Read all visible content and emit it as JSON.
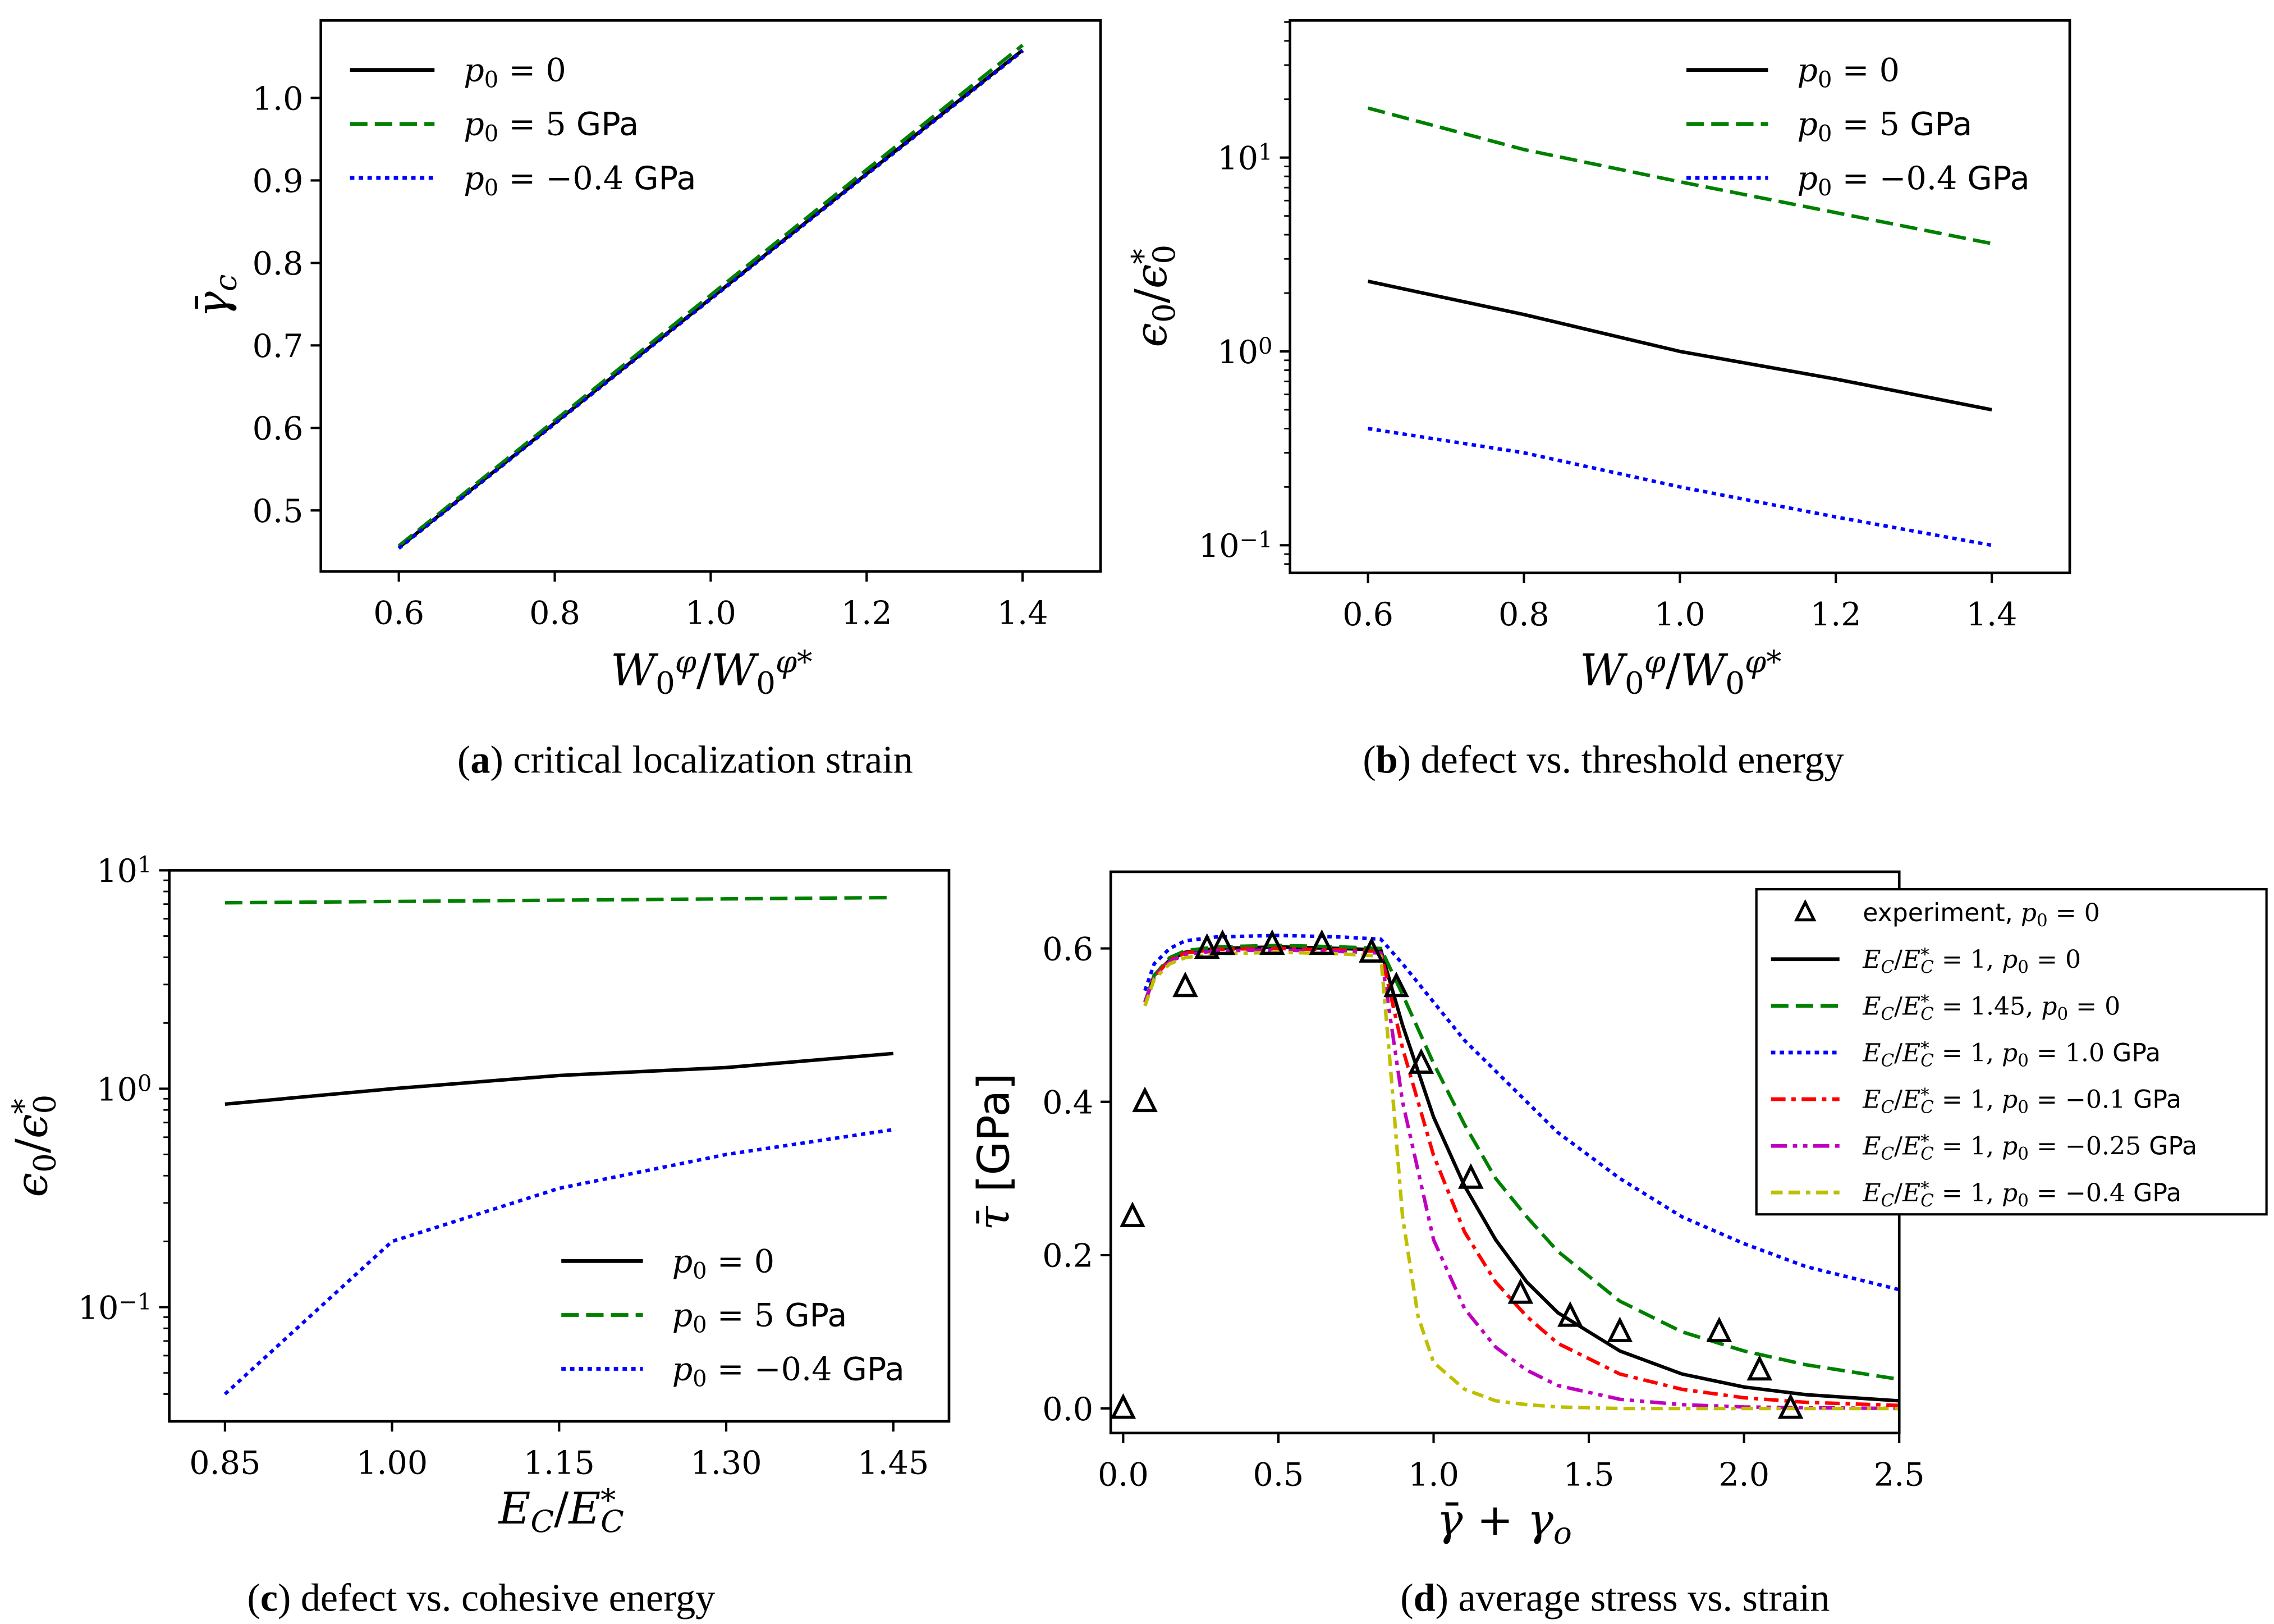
{
  "colors": {
    "black": "#000000",
    "green": "#008000",
    "blue": "#0000ff",
    "red": "#ff0000",
    "magenta": "#bf00bf",
    "yellow": "#bfbf00"
  },
  "chart_data": [
    {
      "type": "line",
      "id": "a",
      "caption": {
        "letter": "a",
        "text": "critical localization strain"
      },
      "xlabel": "W_{0}^{φ}/W_{0}^{φ*}",
      "ylabel": "γ̄_{c}",
      "xscale": "linear",
      "yscale": "linear",
      "xlim": [
        0.5,
        1.5
      ],
      "ylim": [
        0.426,
        1.094
      ],
      "xticks": [
        0.6,
        0.8,
        1.0,
        1.2,
        1.4
      ],
      "xticklabels": [
        "0.6",
        "0.8",
        "1.0",
        "1.2",
        "1.4"
      ],
      "yticks": [
        0.5,
        0.6,
        0.7,
        0.8,
        0.9,
        1.0
      ],
      "yticklabels": [
        "0.5",
        "0.6",
        "0.7",
        "0.8",
        "0.9",
        "1.0"
      ],
      "legend_position": "top-left",
      "series": [
        {
          "name": "p_{0} = 0",
          "color": "black",
          "style": "solid",
          "x": [
            0.6,
            0.8,
            1.0,
            1.2,
            1.4
          ],
          "y": [
            0.455,
            0.606,
            0.757,
            0.908,
            1.058
          ]
        },
        {
          "name": "p_{0} = 5 «GPa»",
          "color": "green",
          "style": "dashed",
          "x": [
            0.6,
            0.8,
            1.0,
            1.2,
            1.4
          ],
          "y": [
            0.457,
            0.609,
            0.761,
            0.913,
            1.064
          ]
        },
        {
          "name": "p_{0} = −0.4 «GPa»",
          "color": "blue",
          "style": "dotted",
          "x": [
            0.6,
            0.8,
            1.0,
            1.2,
            1.4
          ],
          "y": [
            0.454,
            0.605,
            0.756,
            0.907,
            1.057
          ]
        }
      ]
    },
    {
      "type": "line",
      "id": "b",
      "caption": {
        "letter": "b",
        "text": "defect vs. threshold energy"
      },
      "xlabel": "W_{0}^{φ}/W_{0}^{φ*}",
      "ylabel": "ϵ_{0}/ϵ^{*}_{0}",
      "xscale": "linear",
      "yscale": "log",
      "xlim": [
        0.5,
        1.5
      ],
      "ylim": [
        0.072,
        51
      ],
      "xticks": [
        0.6,
        0.8,
        1.0,
        1.2,
        1.4
      ],
      "xticklabels": [
        "0.6",
        "0.8",
        "1.0",
        "1.2",
        "1.4"
      ],
      "yticks": [
        0.1,
        1,
        10
      ],
      "yticklabels": [
        "10^{−1}",
        "10^{0}",
        "10^{1}"
      ],
      "legend_position": "top-right",
      "series": [
        {
          "name": "p_{0} = 0",
          "color": "black",
          "style": "solid",
          "x": [
            0.6,
            0.8,
            1.0,
            1.2,
            1.4
          ],
          "y": [
            2.3,
            1.55,
            1.0,
            0.72,
            0.5
          ]
        },
        {
          "name": "p_{0} = 5 «GPa»",
          "color": "green",
          "style": "dashed",
          "x": [
            0.6,
            0.8,
            1.0,
            1.2,
            1.4
          ],
          "y": [
            18,
            11,
            7.5,
            5.2,
            3.6
          ]
        },
        {
          "name": "p_{0} = −0.4 «GPa»",
          "color": "blue",
          "style": "dotted",
          "x": [
            0.6,
            0.8,
            1.0,
            1.2,
            1.4
          ],
          "y": [
            0.4,
            0.3,
            0.2,
            0.14,
            0.1
          ]
        }
      ]
    },
    {
      "type": "line",
      "id": "c",
      "caption": {
        "letter": "c",
        "text": "defect vs. cohesive energy"
      },
      "xlabel": "E_{C}/E^{*}_{C}",
      "ylabel": "ϵ_{0}/ϵ^{*}_{0}",
      "xscale": "linear",
      "yscale": "log",
      "xlim": [
        0.8,
        1.5
      ],
      "ylim": [
        0.03,
        10
      ],
      "xticks": [
        0.85,
        1.0,
        1.15,
        1.3,
        1.45
      ],
      "xticklabels": [
        "0.85",
        "1.00",
        "1.15",
        "1.30",
        "1.45"
      ],
      "yticks": [
        0.1,
        1,
        10
      ],
      "yticklabels": [
        "10^{−1}",
        "10^{0}",
        "10^{1}"
      ],
      "legend_position": "bottom-right",
      "series": [
        {
          "name": "p_{0} = 0",
          "color": "black",
          "style": "solid",
          "x": [
            0.85,
            1.0,
            1.15,
            1.3,
            1.45
          ],
          "y": [
            0.85,
            1.0,
            1.15,
            1.25,
            1.45
          ]
        },
        {
          "name": "p_{0} = 5 «GPa»",
          "color": "green",
          "style": "dashed",
          "x": [
            0.85,
            1.0,
            1.15,
            1.3,
            1.45
          ],
          "y": [
            7.1,
            7.2,
            7.3,
            7.4,
            7.5
          ]
        },
        {
          "name": "p_{0} = −0.4 «GPa»",
          "color": "blue",
          "style": "dotted",
          "x": [
            0.85,
            1.0,
            1.15,
            1.3,
            1.45
          ],
          "y": [
            0.04,
            0.2,
            0.35,
            0.5,
            0.65
          ]
        }
      ]
    },
    {
      "type": "line",
      "id": "d",
      "caption": {
        "letter": "d",
        "text": "average stress vs. strain"
      },
      "xlabel": "γ̄ + γ_{o}",
      "ylabel": "τ̄ «[GPa]»",
      "xscale": "linear",
      "yscale": "linear",
      "xlim": [
        -0.04,
        2.5
      ],
      "ylim": [
        -0.032,
        0.7
      ],
      "xticks": [
        0,
        0.5,
        1.0,
        1.5,
        2.0,
        2.5
      ],
      "xticklabels": [
        "0.0",
        "0.5",
        "1.0",
        "1.5",
        "2.0",
        "2.5"
      ],
      "yticks": [
        0,
        0.2,
        0.4,
        0.6
      ],
      "yticklabels": [
        "0.0",
        "0.2",
        "0.4",
        "0.6"
      ],
      "legend_position": "upper-right (outside)",
      "scatter": {
        "name": "«experiment,» p_{0} = 0",
        "color": "black",
        "marker": "open-triangle",
        "x": [
          0.0,
          0.03,
          0.07,
          0.2,
          0.27,
          0.32,
          0.48,
          0.64,
          0.8,
          0.88,
          0.96,
          1.12,
          1.28,
          1.44,
          1.6,
          1.92,
          2.05,
          2.15
        ],
        "y": [
          0.0,
          0.25,
          0.4,
          0.55,
          0.6,
          0.605,
          0.605,
          0.605,
          0.595,
          0.55,
          0.45,
          0.3,
          0.15,
          0.12,
          0.1,
          0.1,
          0.05,
          0.0
        ]
      },
      "series": [
        {
          "name": "E_{C}/E^{*}_{C} = 1, p_{0} = 0",
          "color": "black",
          "style": "solid",
          "x": [
            0.07,
            0.1,
            0.15,
            0.2,
            0.3,
            0.5,
            0.7,
            0.83,
            0.9,
            1.0,
            1.1,
            1.2,
            1.3,
            1.4,
            1.6,
            1.8,
            2.0,
            2.2,
            2.5
          ],
          "y": [
            0.53,
            0.565,
            0.585,
            0.595,
            0.6,
            0.602,
            0.6,
            0.598,
            0.5,
            0.38,
            0.29,
            0.22,
            0.165,
            0.125,
            0.075,
            0.045,
            0.028,
            0.018,
            0.01
          ]
        },
        {
          "name": "E_{C}/E^{*}_{C} = 1.45, p_{0} = 0",
          "color": "green",
          "style": "dashed",
          "x": [
            0.07,
            0.1,
            0.15,
            0.2,
            0.3,
            0.5,
            0.7,
            0.83,
            0.9,
            1.0,
            1.1,
            1.2,
            1.3,
            1.4,
            1.6,
            1.8,
            2.0,
            2.2,
            2.5
          ],
          "y": [
            0.53,
            0.565,
            0.588,
            0.597,
            0.602,
            0.604,
            0.602,
            0.6,
            0.54,
            0.45,
            0.37,
            0.3,
            0.25,
            0.205,
            0.14,
            0.1,
            0.075,
            0.057,
            0.038
          ]
        },
        {
          "name": "E_{C}/E^{*}_{C} = 1, p_{0} = 1.0 «GPa»",
          "color": "blue",
          "style": "dotted",
          "x": [
            0.07,
            0.1,
            0.15,
            0.2,
            0.3,
            0.5,
            0.7,
            0.83,
            0.9,
            1.0,
            1.1,
            1.2,
            1.3,
            1.4,
            1.6,
            1.8,
            2.0,
            2.2,
            2.5
          ],
          "y": [
            0.545,
            0.58,
            0.6,
            0.61,
            0.615,
            0.617,
            0.615,
            0.612,
            0.58,
            0.53,
            0.48,
            0.44,
            0.4,
            0.36,
            0.3,
            0.25,
            0.215,
            0.185,
            0.155
          ]
        },
        {
          "name": "E_{C}/E^{*}_{C} = 1, p_{0} = −0.1 «GPa»",
          "color": "red",
          "style": "dashdot",
          "x": [
            0.07,
            0.1,
            0.15,
            0.2,
            0.3,
            0.5,
            0.7,
            0.83,
            0.9,
            1.0,
            1.1,
            1.2,
            1.3,
            1.4,
            1.6,
            1.8,
            2.0,
            2.2,
            2.5
          ],
          "y": [
            0.53,
            0.563,
            0.585,
            0.594,
            0.599,
            0.6,
            0.598,
            0.596,
            0.47,
            0.33,
            0.23,
            0.165,
            0.12,
            0.085,
            0.045,
            0.025,
            0.014,
            0.008,
            0.004
          ]
        },
        {
          "name": "E_{C}/E^{*}_{C} = 1, p_{0} = −0.25 «GPa»",
          "color": "magenta",
          "style": "dashdotdot",
          "x": [
            0.07,
            0.1,
            0.15,
            0.2,
            0.3,
            0.5,
            0.7,
            0.83,
            0.9,
            1.0,
            1.1,
            1.2,
            1.3,
            1.4,
            1.6,
            1.8,
            2.0,
            2.2,
            2.5
          ],
          "y": [
            0.53,
            0.562,
            0.583,
            0.592,
            0.597,
            0.598,
            0.596,
            0.594,
            0.4,
            0.22,
            0.13,
            0.08,
            0.05,
            0.03,
            0.012,
            0.005,
            0.002,
            0.001,
            0.0
          ]
        },
        {
          "name": "E_{C}/E^{*}_{C} = 1, p_{0} = −0.4 «GPa»",
          "color": "yellow",
          "style": "dashdashdot",
          "x": [
            0.07,
            0.1,
            0.15,
            0.2,
            0.3,
            0.5,
            0.7,
            0.83,
            0.86,
            0.9,
            0.95,
            1.0,
            1.1,
            1.2,
            1.3,
            1.4,
            1.6,
            2.0,
            2.5
          ],
          "y": [
            0.525,
            0.56,
            0.58,
            0.588,
            0.593,
            0.595,
            0.593,
            0.59,
            0.45,
            0.25,
            0.12,
            0.06,
            0.025,
            0.01,
            0.005,
            0.002,
            0.0,
            0.0,
            0.0
          ]
        }
      ]
    }
  ]
}
